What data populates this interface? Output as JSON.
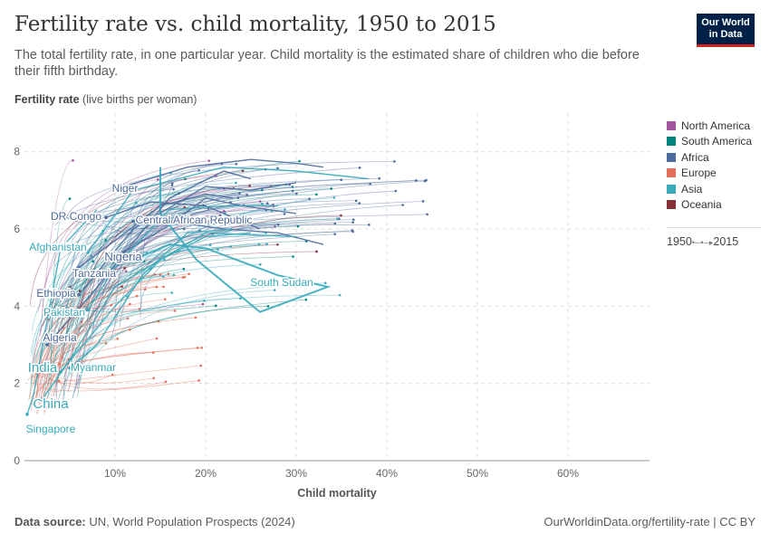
{
  "header": {
    "title": "Fertility rate vs. child mortality, 1950 to 2015",
    "subtitle": "The total fertility rate, in one particular year. Child mortality is the estimated share of children who die before their fifth birthday.",
    "logo": "Our World in Data"
  },
  "footer": {
    "source_label": "Data source:",
    "source": "UN, World Population Prospects (2024)",
    "url": "OurWorldinData.org/fertility-rate | CC BY"
  },
  "timeline": {
    "start": "1950",
    "end": "2015"
  },
  "chart_data": {
    "type": "line",
    "ylabel_bold": "Fertility rate",
    "ylabel_rest": " (live births per woman)",
    "xlabel": "Child mortality",
    "xlim": [
      0,
      69
    ],
    "ylim": [
      0,
      9
    ],
    "xticks": [
      {
        "v": 10,
        "label": "10%"
      },
      {
        "v": 20,
        "label": "20%"
      },
      {
        "v": 30,
        "label": "30%"
      },
      {
        "v": 40,
        "label": "40%"
      },
      {
        "v": 50,
        "label": "50%"
      },
      {
        "v": 60,
        "label": "60%"
      }
    ],
    "yticks": [
      {
        "v": 0,
        "label": "0"
      },
      {
        "v": 2,
        "label": "2"
      },
      {
        "v": 4,
        "label": "4"
      },
      {
        "v": 6,
        "label": "6"
      },
      {
        "v": 8,
        "label": "8"
      }
    ],
    "grid": true,
    "legend_position": "right",
    "legend": [
      {
        "name": "North America",
        "color": "#a2559c"
      },
      {
        "name": "South America",
        "color": "#00847e"
      },
      {
        "name": "Africa",
        "color": "#4c6a9c"
      },
      {
        "name": "Europe",
        "color": "#e56e5a"
      },
      {
        "name": "Asia",
        "color": "#38aaba"
      },
      {
        "name": "Oceania",
        "color": "#883039"
      }
    ],
    "series": [
      {
        "name": "Niger",
        "region": "Africa",
        "points": [
          [
            33,
            7.6
          ],
          [
            30,
            7.7
          ],
          [
            25,
            7.8
          ],
          [
            18,
            7.6
          ],
          [
            11,
            7.1
          ]
        ]
      },
      {
        "name": "DR Congo",
        "region": "Africa",
        "points": [
          [
            26,
            6.0
          ],
          [
            24,
            6.2
          ],
          [
            20,
            6.6
          ],
          [
            14,
            6.7
          ],
          [
            9,
            6.3
          ]
        ]
      },
      {
        "name": "Central African Republic",
        "region": "Africa",
        "points": [
          [
            33,
            5.6
          ],
          [
            28,
            5.9
          ],
          [
            22,
            6.0
          ],
          [
            16,
            6.2
          ],
          [
            12,
            6.2
          ]
        ]
      },
      {
        "name": "Afghanistan",
        "region": "Asia",
        "points": [
          [
            38,
            7.3
          ],
          [
            30,
            7.5
          ],
          [
            22,
            7.6
          ],
          [
            12,
            7.0
          ],
          [
            7,
            5.4
          ]
        ]
      },
      {
        "name": "Nigeria",
        "region": "Africa",
        "points": [
          [
            30,
            6.4
          ],
          [
            24,
            6.6
          ],
          [
            20,
            6.8
          ],
          [
            16,
            6.1
          ],
          [
            11,
            5.4
          ]
        ]
      },
      {
        "name": "Tanzania",
        "region": "Africa",
        "points": [
          [
            23,
            6.8
          ],
          [
            20,
            6.9
          ],
          [
            15,
            6.6
          ],
          [
            10,
            5.7
          ],
          [
            6,
            5.0
          ]
        ]
      },
      {
        "name": "South Sudan",
        "region": "Asia",
        "points": [
          [
            15,
            7.6
          ],
          [
            15,
            6.4
          ],
          [
            19,
            5.2
          ],
          [
            26,
            3.85
          ],
          [
            33.5,
            4.5
          ],
          [
            28,
            4.8
          ],
          [
            20,
            5.5
          ],
          [
            16,
            5.6
          ],
          [
            12,
            5.2
          ]
        ]
      },
      {
        "name": "Ethiopia",
        "region": "Africa",
        "points": [
          [
            30,
            7.2
          ],
          [
            25,
            7.0
          ],
          [
            20,
            7.1
          ],
          [
            12,
            6.0
          ],
          [
            6,
            4.3
          ]
        ]
      },
      {
        "name": "Pakistan",
        "region": "Asia",
        "points": [
          [
            28,
            6.6
          ],
          [
            22,
            6.6
          ],
          [
            16,
            6.5
          ],
          [
            10,
            5.0
          ],
          [
            7,
            3.9
          ]
        ]
      },
      {
        "name": "Algeria",
        "region": "Africa",
        "points": [
          [
            25,
            7.3
          ],
          [
            22,
            7.5
          ],
          [
            16,
            6.8
          ],
          [
            7,
            4.2
          ],
          [
            2.5,
            3.0
          ]
        ]
      },
      {
        "name": "India",
        "region": "Asia",
        "points": [
          [
            25,
            5.9
          ],
          [
            20,
            5.8
          ],
          [
            15,
            5.2
          ],
          [
            10,
            4.0
          ],
          [
            4,
            2.3
          ]
        ]
      },
      {
        "name": "Myanmar",
        "region": "Asia",
        "points": [
          [
            23,
            6.0
          ],
          [
            18,
            5.9
          ],
          [
            13,
            4.8
          ],
          [
            8,
            3.0
          ],
          [
            5,
            2.4
          ]
        ]
      },
      {
        "name": "China",
        "region": "Asia",
        "points": [
          [
            30,
            5.8
          ],
          [
            20,
            5.9
          ],
          [
            10,
            4.5
          ],
          [
            5,
            2.6
          ],
          [
            2,
            1.6
          ]
        ]
      },
      {
        "name": "Singapore",
        "region": "Asia",
        "points": [
          [
            8,
            6.5
          ],
          [
            4,
            5.5
          ],
          [
            2,
            3.0
          ],
          [
            1,
            1.7
          ],
          [
            0.3,
            1.2
          ]
        ]
      }
    ]
  }
}
